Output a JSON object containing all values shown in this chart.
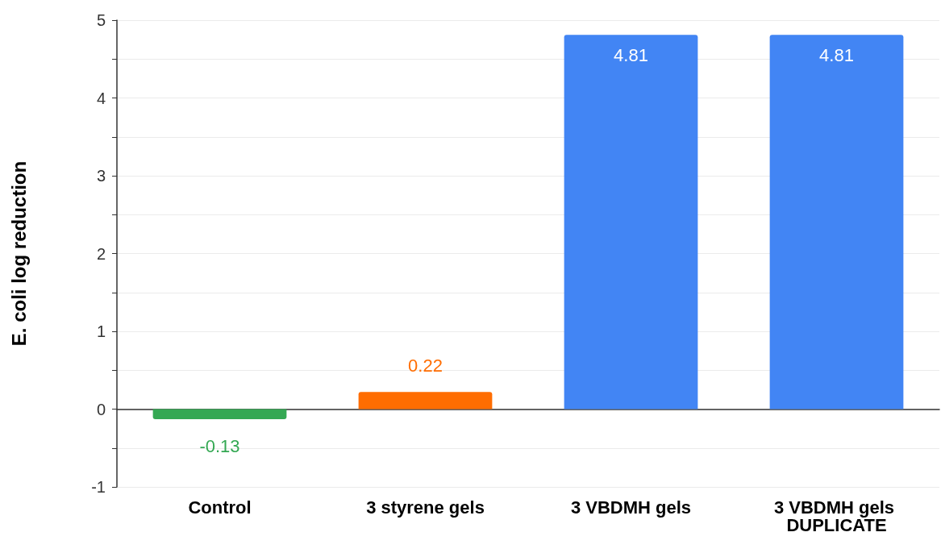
{
  "chart_data": {
    "type": "bar",
    "ylabel": "E. coli log reduction",
    "categories": [
      "Control",
      "3 styrene gels",
      "3 VBDMH gels",
      "3 VBDMH gels DUPLICATE"
    ],
    "values": [
      -0.13,
      0.22,
      4.81,
      4.81
    ],
    "colors": [
      "#34a853",
      "#ff6d01",
      "#4285f4",
      "#4285f4"
    ],
    "ylim": [
      -1,
      5
    ],
    "yticks": [
      -1,
      {
        "value": -0.5,
        "label": null
      },
      0,
      {
        "value": 0.5,
        "label": null
      },
      1,
      {
        "value": 1.5,
        "label": null
      },
      2,
      {
        "value": 2.5,
        "label": null
      },
      3,
      {
        "value": 3.5,
        "label": null
      },
      4,
      {
        "value": 4.5,
        "label": null
      },
      5
    ],
    "grid": true,
    "data_labels": true
  }
}
